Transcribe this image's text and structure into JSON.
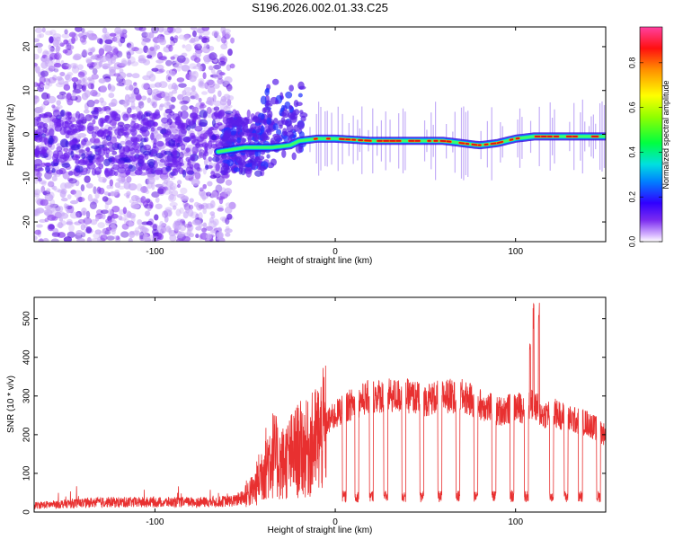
{
  "chart_data": [
    {
      "type": "heatmap",
      "title": "S196.2026.002.01.33.C25",
      "xlabel": "Height of straight line (km)",
      "ylabel": "Frequency (Hz)",
      "xlim": [
        -167,
        150
      ],
      "ylim": [
        -24.5,
        24.5
      ],
      "xticks": [
        -100,
        0,
        100
      ],
      "yticks": [
        -20,
        -10,
        0,
        10,
        20
      ],
      "colorbar": {
        "label": "Normalized spectral amplitude",
        "range": [
          0.0,
          0.96
        ],
        "ticks": [
          0.0,
          0.2,
          0.4,
          0.6,
          0.8
        ],
        "tick_labels": [
          "0.0",
          "0.2",
          "0.4",
          "0.6",
          "0.8"
        ],
        "colors": [
          "#ffffff",
          "#9b59ff",
          "#5000e0",
          "#0020ff",
          "#00c8ff",
          "#00ff60",
          "#a0ff00",
          "#ffff00",
          "#ff8000",
          "#ff0000",
          "#ff40a0"
        ]
      },
      "ridge": {
        "description_points_x": [
          -65,
          -50,
          -35,
          -25,
          -20,
          -10,
          0,
          20,
          40,
          60,
          80,
          90,
          100,
          110,
          130,
          150
        ],
        "frequency_hz": [
          -4,
          -3,
          -3,
          -2.5,
          -1.5,
          -1,
          -1,
          -1.5,
          -1.5,
          -1.5,
          -2.5,
          -2,
          -1,
          -0.5,
          -0.5,
          -0.5
        ]
      }
    },
    {
      "type": "line",
      "xlabel": "Height of straight line (km)",
      "ylabel": "SNR (10 * v/v)",
      "xlim": [
        -167,
        150
      ],
      "ylim": [
        0,
        555
      ],
      "xticks": [
        -100,
        0,
        100
      ],
      "yticks": [
        0,
        100,
        200,
        300,
        400,
        500
      ],
      "color": "#e83030",
      "series": [
        {
          "name": "SNR",
          "x": [
            -167,
            -150,
            -130,
            -110,
            -90,
            -70,
            -55,
            -45,
            -40,
            -35,
            -30,
            -25,
            -20,
            -15,
            -10,
            -5,
            0,
            5,
            10,
            15,
            20,
            30,
            40,
            50,
            60,
            70,
            80,
            90,
            100,
            105,
            110,
            115,
            120,
            130,
            140,
            150
          ],
          "y": [
            20,
            25,
            30,
            30,
            30,
            30,
            35,
            60,
            120,
            160,
            130,
            150,
            170,
            170,
            200,
            230,
            250,
            270,
            280,
            290,
            300,
            300,
            300,
            290,
            300,
            300,
            280,
            260,
            270,
            270,
            280,
            250,
            260,
            240,
            230,
            200
          ],
          "dips_at_x": [
            5,
            12,
            20,
            28,
            38,
            48,
            58,
            68,
            78,
            88,
            98,
            106,
            120,
            128,
            136,
            146
          ],
          "spikes": [
            {
              "x": 110,
              "y": 555
            },
            {
              "x": 113,
              "y": 550
            },
            {
              "x": 108,
              "y": 480
            },
            {
              "x": 65,
              "y": 360
            }
          ]
        }
      ]
    }
  ]
}
